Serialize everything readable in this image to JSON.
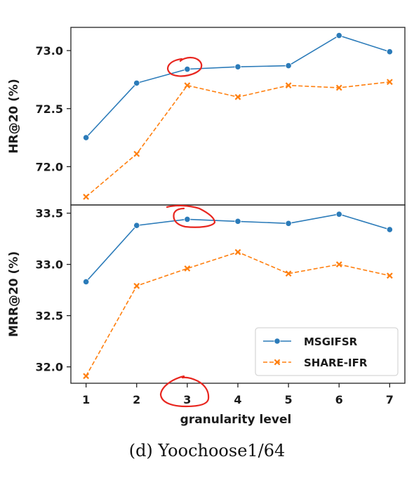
{
  "caption": "(d)  Yoochoose1/64",
  "colors": {
    "series1": "#2b7bb9",
    "series2": "#ff7f0e",
    "annotation": "#e8261f"
  },
  "chart_data": [
    {
      "type": "line",
      "ylabel": "HR@20 (%)",
      "xlabel": "",
      "x": [
        1,
        2,
        3,
        4,
        5,
        6,
        7
      ],
      "xlim": [
        0.7,
        7.3
      ],
      "ylim": [
        71.67,
        73.2
      ],
      "yticks": [
        "72.0",
        "72.5",
        "73.0"
      ],
      "ytick_values": [
        72.0,
        72.5,
        73.0
      ],
      "grid": false,
      "series": [
        {
          "name": "MSGIFSR",
          "values": [
            72.25,
            72.72,
            72.84,
            72.86,
            72.87,
            73.13,
            72.99
          ],
          "style": "solid",
          "marker": "circle"
        },
        {
          "name": "SHARE-IFR",
          "values": [
            71.74,
            72.11,
            72.7,
            72.6,
            72.7,
            72.68,
            72.73
          ],
          "style": "dashed",
          "marker": "x"
        }
      ]
    },
    {
      "type": "line",
      "ylabel": "MRR@20 (%)",
      "xlabel": "granularity level",
      "x": [
        1,
        2,
        3,
        4,
        5,
        6,
        7
      ],
      "xtick_labels": [
        "1",
        "2",
        "3",
        "4",
        "5",
        "6",
        "7"
      ],
      "xlim": [
        0.7,
        7.3
      ],
      "ylim": [
        31.84,
        33.58
      ],
      "yticks": [
        "32.0",
        "32.5",
        "33.0",
        "33.5"
      ],
      "ytick_values": [
        32.0,
        32.5,
        33.0,
        33.5
      ],
      "grid": false,
      "legend": {
        "position": "lower-right",
        "entries": [
          "MSGIFSR",
          "SHARE-IFR"
        ]
      },
      "series": [
        {
          "name": "MSGIFSR",
          "values": [
            32.83,
            33.38,
            33.44,
            33.42,
            33.4,
            33.49,
            33.34
          ],
          "style": "solid",
          "marker": "circle"
        },
        {
          "name": "SHARE-IFR",
          "values": [
            31.91,
            32.79,
            32.96,
            33.12,
            32.91,
            33.0,
            32.89
          ],
          "style": "dashed",
          "marker": "x"
        }
      ]
    }
  ]
}
